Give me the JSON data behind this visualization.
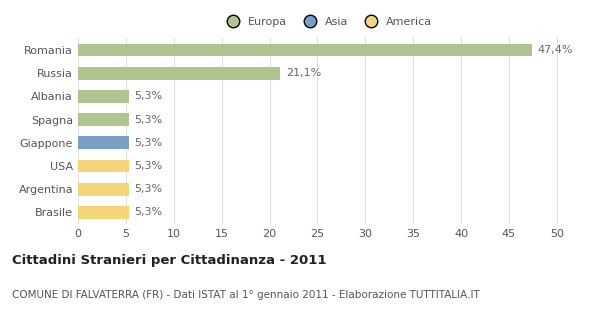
{
  "categories": [
    "Romania",
    "Russia",
    "Albania",
    "Spagna",
    "Giappone",
    "USA",
    "Argentina",
    "Brasile"
  ],
  "values": [
    47.4,
    21.1,
    5.3,
    5.3,
    5.3,
    5.3,
    5.3,
    5.3
  ],
  "labels": [
    "47,4%",
    "21,1%",
    "5,3%",
    "5,3%",
    "5,3%",
    "5,3%",
    "5,3%",
    "5,3%"
  ],
  "colors": [
    "#afc48e",
    "#afc48e",
    "#afc48e",
    "#afc48e",
    "#7a9fc4",
    "#f5d57a",
    "#f5d57a",
    "#f5d57a"
  ],
  "legend": [
    {
      "label": "Europa",
      "color": "#afc48e"
    },
    {
      "label": "Asia",
      "color": "#7a9fc4"
    },
    {
      "label": "America",
      "color": "#f5d57a"
    }
  ],
  "xlim": [
    0,
    52
  ],
  "xticks": [
    0,
    5,
    10,
    15,
    20,
    25,
    30,
    35,
    40,
    45,
    50
  ],
  "title": "Cittadini Stranieri per Cittadinanza - 2011",
  "subtitle": "COMUNE DI FALVATERRA (FR) - Dati ISTAT al 1° gennaio 2011 - Elaborazione TUTTITALIA.IT",
  "background_color": "#ffffff",
  "grid_color": "#e0e0e0",
  "bar_height": 0.55,
  "label_fontsize": 8,
  "tick_fontsize": 8,
  "title_fontsize": 9.5,
  "subtitle_fontsize": 7.5
}
